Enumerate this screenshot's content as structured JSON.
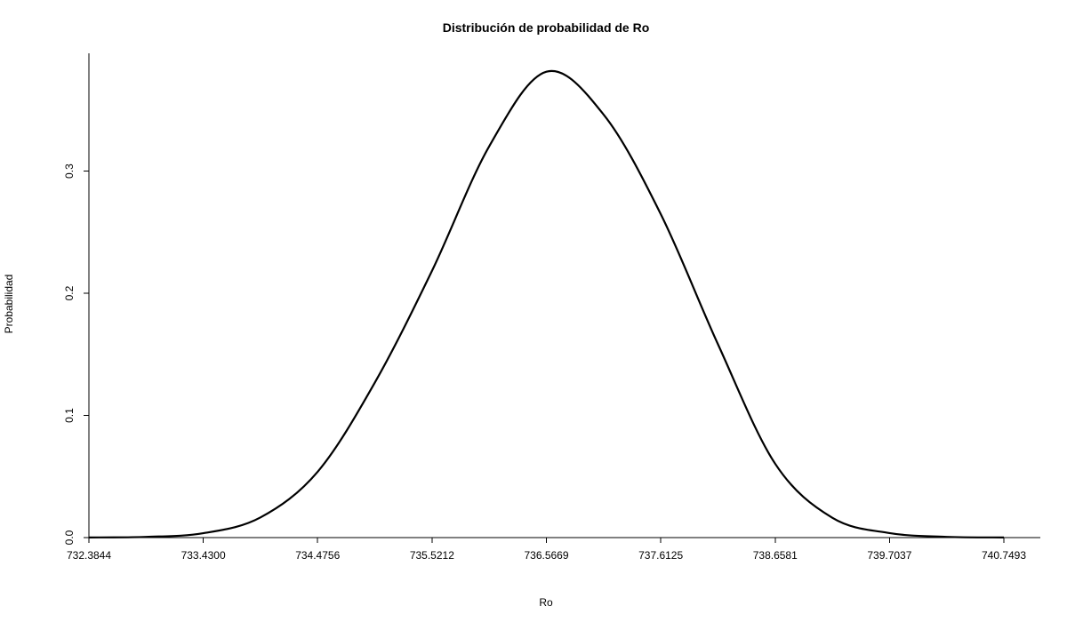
{
  "chart_data": {
    "type": "line",
    "title": "Distribución de probabilidad de Ro",
    "xlabel": "Ro",
    "ylabel": "Probabilidad",
    "xlim": [
      732.3844,
      740.7493
    ],
    "ylim": [
      0,
      0.395
    ],
    "x_ticks": [
      732.3844,
      733.43,
      734.4756,
      735.5212,
      736.5669,
      737.6125,
      738.6581,
      739.7037,
      740.7493
    ],
    "x_tick_labels": [
      "732.3844",
      "733.4300",
      "734.4756",
      "735.5212",
      "736.5669",
      "737.6125",
      "738.6581",
      "739.7037",
      "740.7493"
    ],
    "y_ticks": [
      0,
      0.1,
      0.2,
      0.3
    ],
    "y_tick_labels": [
      "0.0",
      "0.1",
      "0.2",
      "0.3"
    ],
    "grid": false,
    "legend": "none",
    "series": [
      {
        "color": "#000000",
        "x": [
          732.3844,
          732.9072,
          733.43,
          733.9528,
          734.4756,
          734.9984,
          735.5212,
          736.044,
          736.5669,
          737.0897,
          737.6125,
          738.1353,
          738.6581,
          739.1809,
          739.7037,
          740.2265,
          740.7493
        ],
        "y": [
          0.0001,
          0.0006,
          0.0036,
          0.0165,
          0.0539,
          0.1269,
          0.2184,
          0.3203,
          0.3814,
          0.3463,
          0.2648,
          0.1583,
          0.0605,
          0.0162,
          0.0037,
          0.0006,
          0.0001
        ]
      }
    ]
  }
}
